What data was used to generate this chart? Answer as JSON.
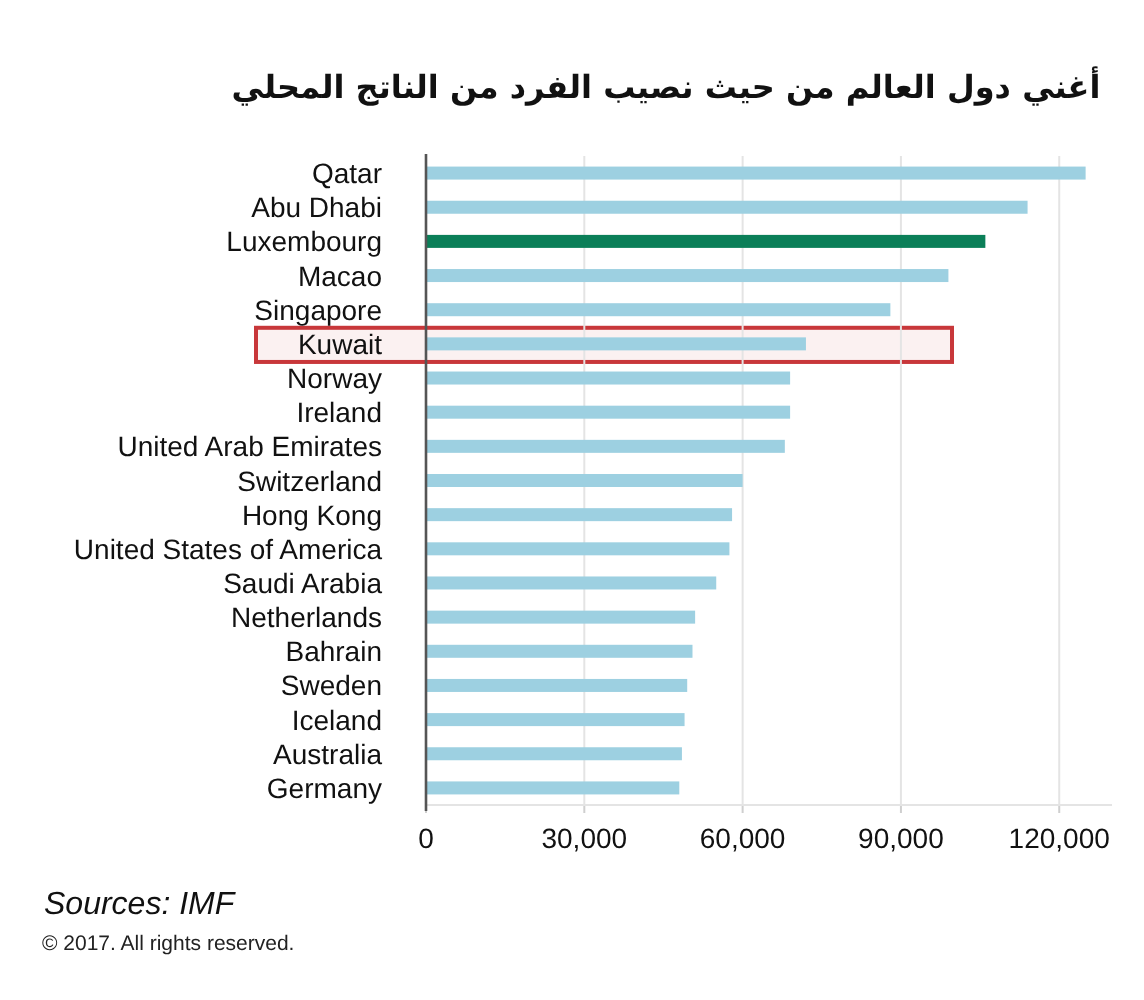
{
  "chart_data": {
    "type": "bar",
    "orientation": "horizontal",
    "title": "أغني دول العالم من حيث نصيب الفرد من الناتج المحلي",
    "categories": [
      "Qatar",
      "Abu Dhabi",
      "Luxembourg",
      "Macao",
      "Singapore",
      "Kuwait",
      "Norway",
      "Ireland",
      "United Arab Emirates",
      "Switzerland",
      "Hong Kong",
      "United States of America",
      "Saudi Arabia",
      "Netherlands",
      "Bahrain",
      "Sweden",
      "Iceland",
      "Australia",
      "Germany"
    ],
    "values": [
      125000,
      114000,
      106000,
      99000,
      88000,
      72000,
      69000,
      69000,
      68000,
      60000,
      58000,
      57500,
      55000,
      51000,
      50500,
      49500,
      49000,
      48500,
      48000
    ],
    "colors": [
      "#9dd0e1",
      "#9dd0e1",
      "#0b7f58",
      "#9dd0e1",
      "#9dd0e1",
      "#9dd0e1",
      "#9dd0e1",
      "#9dd0e1",
      "#9dd0e1",
      "#9dd0e1",
      "#9dd0e1",
      "#9dd0e1",
      "#9dd0e1",
      "#9dd0e1",
      "#9dd0e1",
      "#9dd0e1",
      "#9dd0e1",
      "#9dd0e1",
      "#9dd0e1"
    ],
    "xlim": [
      0,
      130000
    ],
    "xticks": [
      0,
      {
        "value": 30000,
        "label": "30,000"
      },
      {
        "value": 60000,
        "label": "60,000"
      },
      {
        "value": 90000,
        "label": "90,000"
      },
      {
        "value": 120000,
        "label": "120,000"
      }
    ],
    "grid": "x",
    "bands": [
      {
        "axis": "y",
        "from": "Kuwait",
        "to": "Kuwait",
        "color": "#c8373a"
      }
    ],
    "annotations": [
      "Sources: IMF",
      "© 2017. All rights reserved."
    ]
  }
}
